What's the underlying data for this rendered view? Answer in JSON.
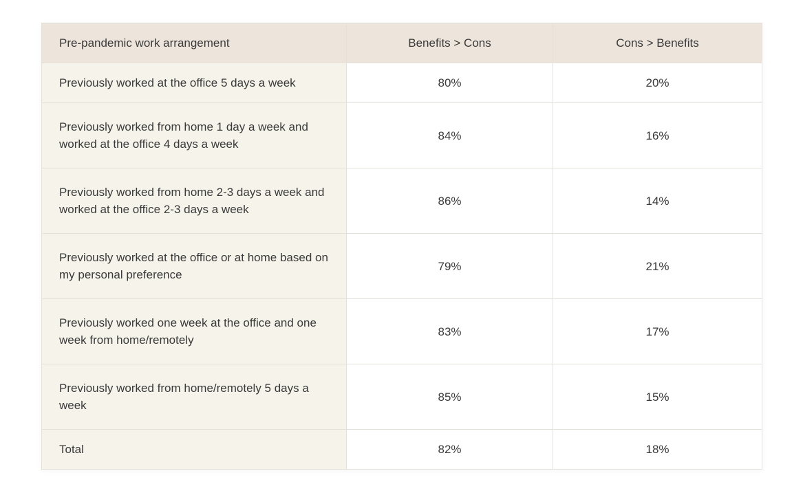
{
  "table": {
    "headers": [
      "Pre-pandemic work arrangement",
      "Benefits > Cons",
      "Cons > Benefits"
    ],
    "rows": [
      {
        "label": "Previously worked at the office 5 days a week",
        "benefits": "80%",
        "cons": "20%"
      },
      {
        "label": "Previously worked from home 1 day a week and worked at the office 4 days a week",
        "benefits": "84%",
        "cons": "16%"
      },
      {
        "label": "Previously worked from home 2-3 days a week and worked at the office 2-3 days a week",
        "benefits": "86%",
        "cons": "14%"
      },
      {
        "label": "Previously worked at the office or at home based on my personal preference",
        "benefits": "79%",
        "cons": "21%"
      },
      {
        "label": "Previously worked one week at the office and one week from home/remotely",
        "benefits": "83%",
        "cons": "17%"
      },
      {
        "label": "Previously worked from home/remotely 5 days a week",
        "benefits": "85%",
        "cons": "15%"
      },
      {
        "label": "Total",
        "benefits": "82%",
        "cons": "18%"
      }
    ]
  },
  "colors": {
    "header_bg": "#ede5dc",
    "label_col_bg": "#f5f3ea",
    "cell_bg": "#ffffff",
    "border": "#e4e1db",
    "text": "#3a3a3a"
  }
}
